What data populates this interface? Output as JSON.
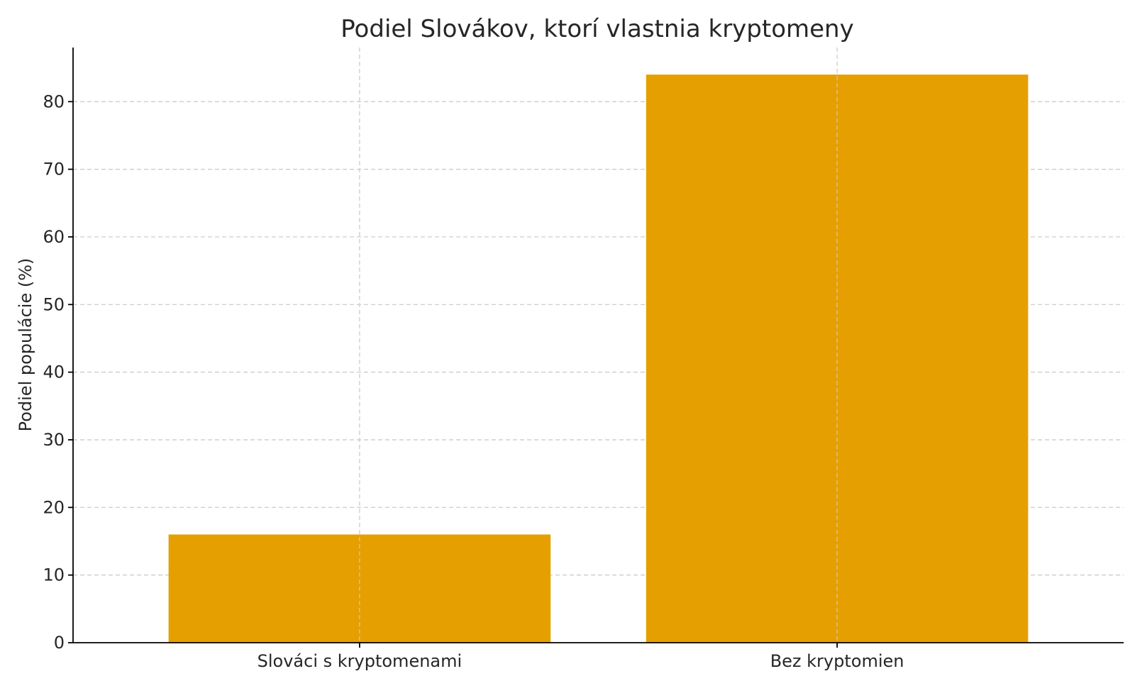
{
  "chart_data": {
    "type": "bar",
    "title": "Podiel Slovákov, ktorí vlastnia kryptomeny",
    "xlabel": "",
    "ylabel": "Podiel populácie (%)",
    "categories": [
      "Slováci s kryptomenami",
      "Bez kryptomien"
    ],
    "values": [
      16,
      84
    ],
    "ylim": [
      0,
      88
    ],
    "yticks": [
      0,
      10,
      20,
      30,
      40,
      50,
      60,
      70,
      80
    ],
    "grid": true,
    "bar_color": "#E69F00"
  }
}
